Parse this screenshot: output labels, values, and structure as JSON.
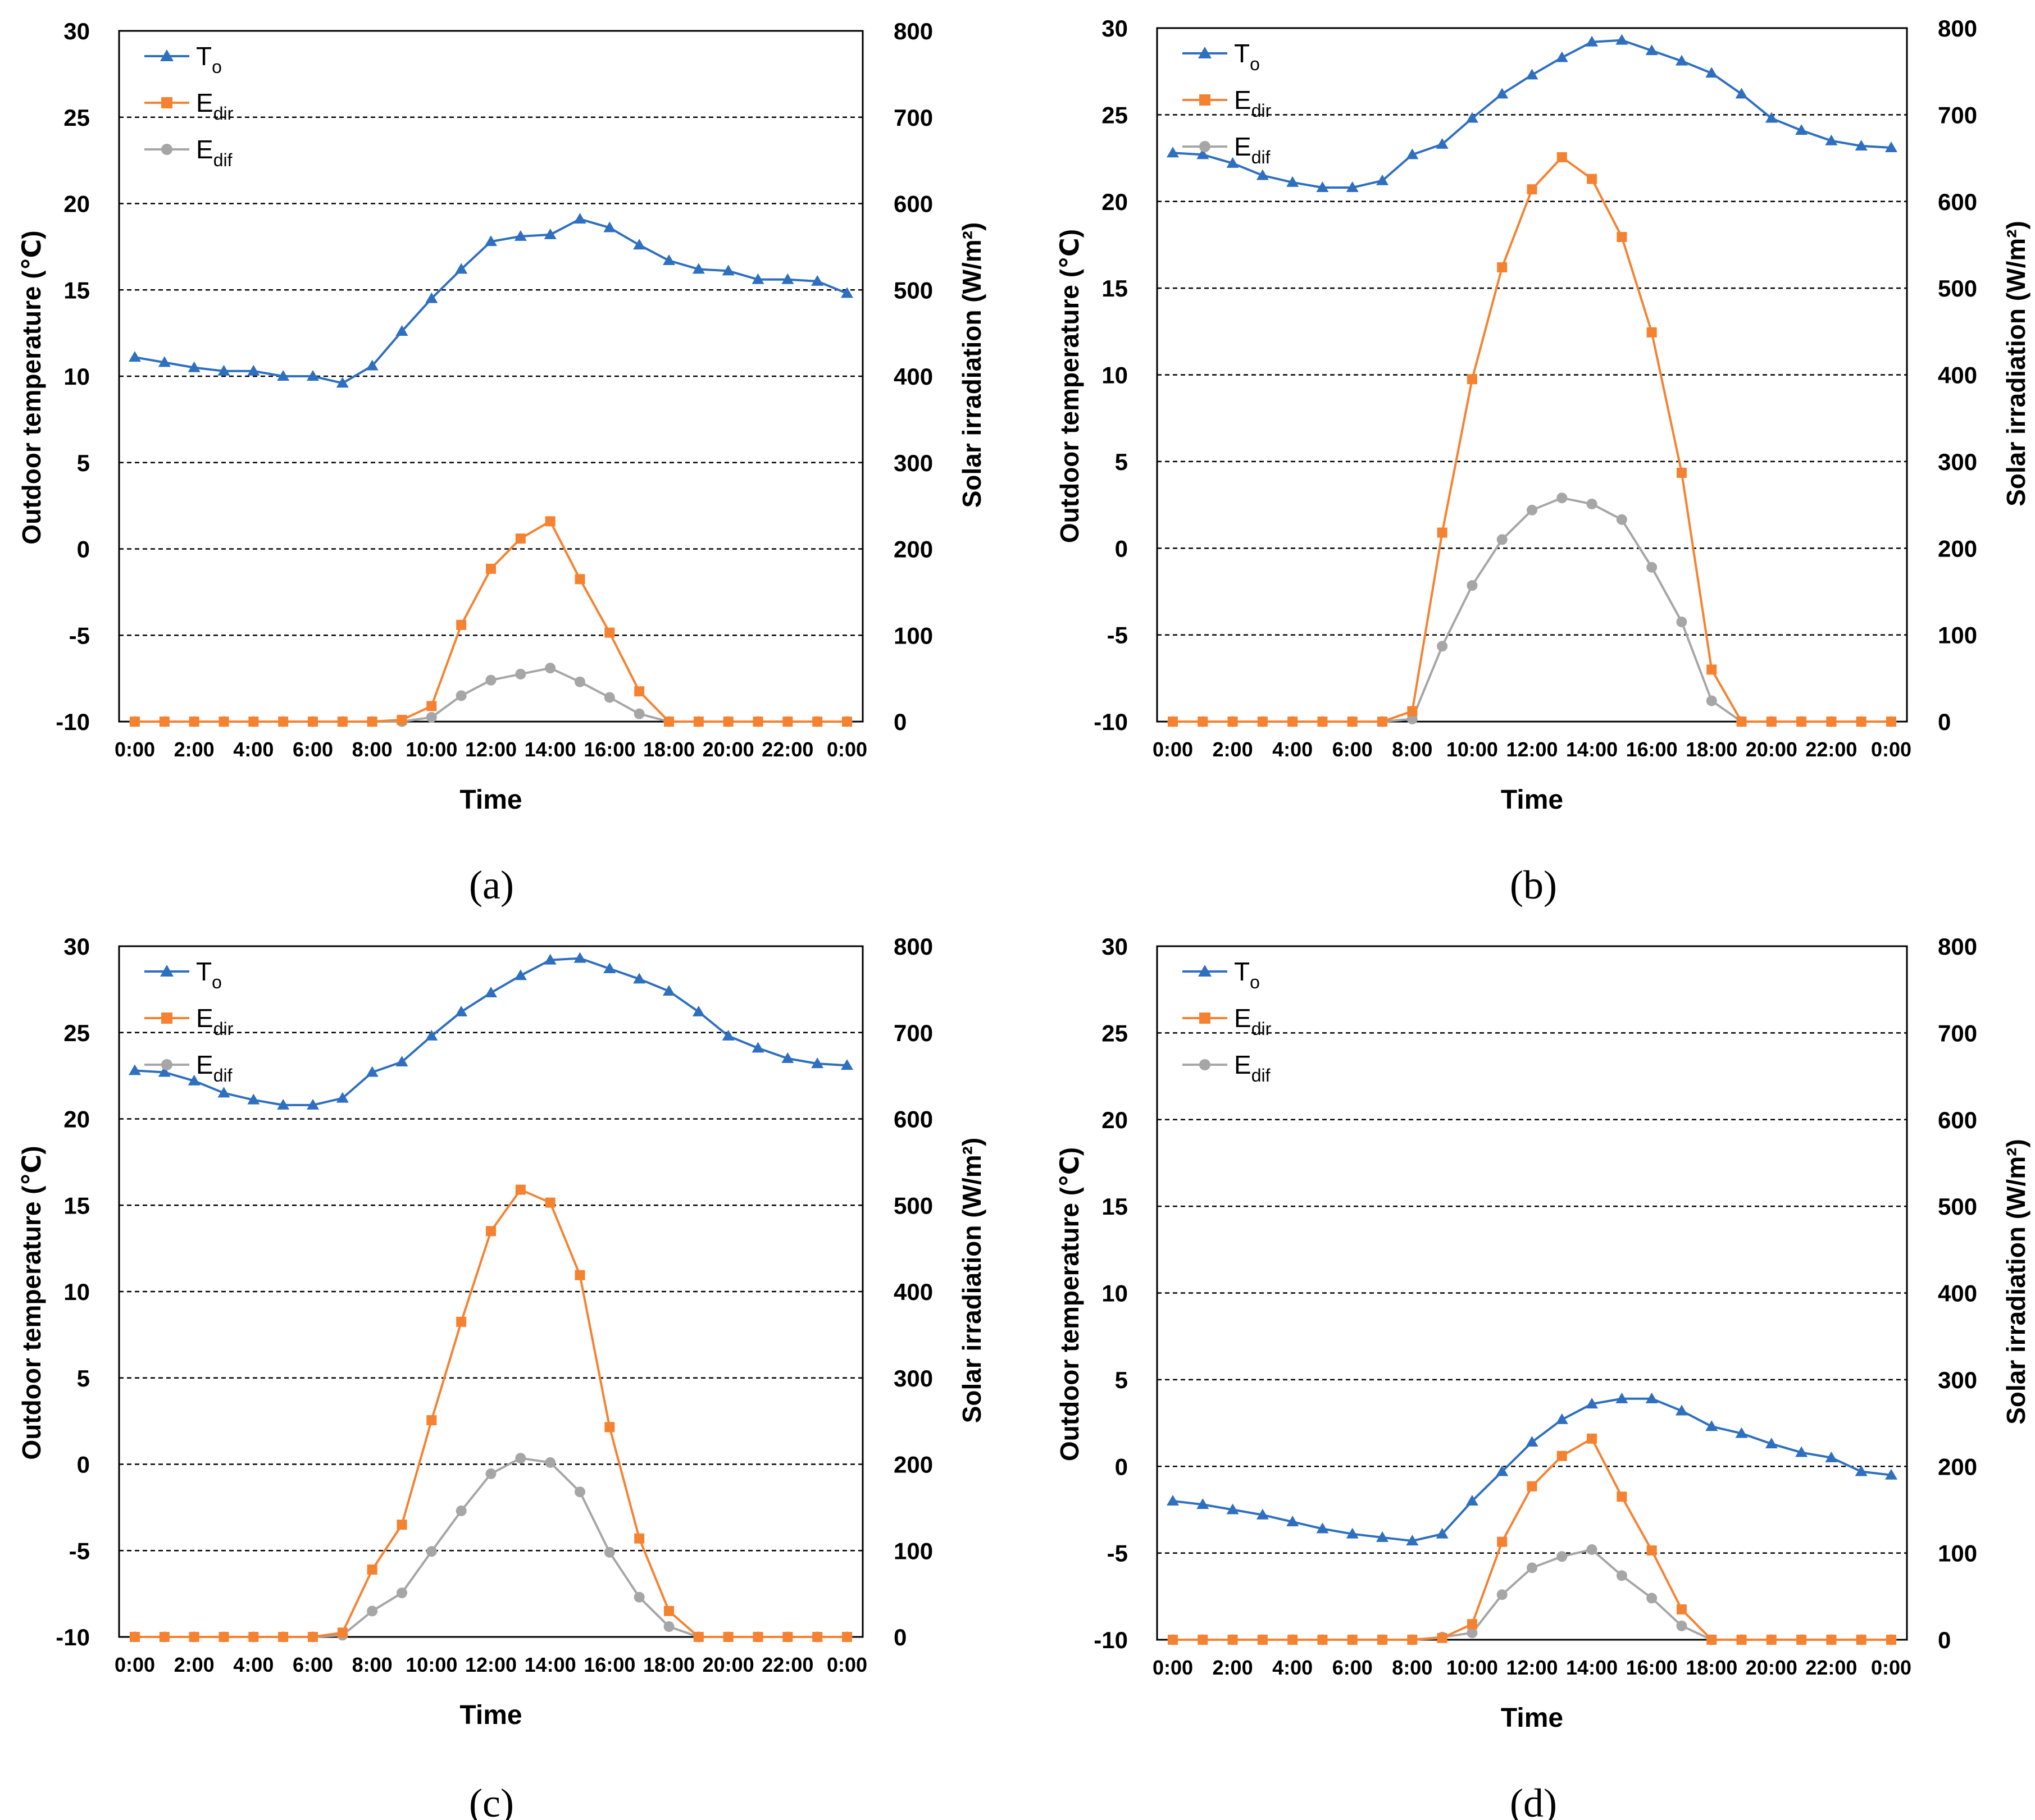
{
  "figure": {
    "panels": [
      "(a)",
      "(b)",
      "(c)",
      "(d)"
    ]
  },
  "colors": {
    "To": "#2e6fc0",
    "Edir": "#f58231",
    "Edif": "#a6a6a6",
    "grid": "#000000",
    "axis": "#000000"
  },
  "chart_data": [
    {
      "type": "line",
      "panel_label": "(a)",
      "x": [
        "0:00",
        "1:00",
        "2:00",
        "3:00",
        "4:00",
        "5:00",
        "6:00",
        "7:00",
        "8:00",
        "9:00",
        "10:00",
        "11:00",
        "12:00",
        "13:00",
        "14:00",
        "15:00",
        "16:00",
        "17:00",
        "18:00",
        "19:00",
        "20:00",
        "21:00",
        "22:00",
        "23:00",
        "0:00"
      ],
      "xtick_labels": [
        "0:00",
        "2:00",
        "4:00",
        "6:00",
        "8:00",
        "10:00",
        "12:00",
        "14:00",
        "16:00",
        "18:00",
        "20:00",
        "22:00",
        "0:00"
      ],
      "xlabel": "Time",
      "ylabel_left": "Outdoor temperature (℃)",
      "ylabel_right": "Solar irradiation (W/m²)",
      "ylim_left": [
        -10,
        30
      ],
      "yticks_left": [
        "-10",
        "-5",
        "0",
        "5",
        "10",
        "15",
        "20",
        "25",
        "30"
      ],
      "ylim_right": [
        0,
        800
      ],
      "yticks_right": [
        "0",
        "100",
        "200",
        "300",
        "400",
        "500",
        "600",
        "700",
        "800"
      ],
      "legend": {
        "placement": "top-left",
        "entries": [
          {
            "base": "T",
            "sub": "o"
          },
          {
            "base": "E",
            "sub": "dir"
          },
          {
            "base": "E",
            "sub": "dif"
          }
        ]
      },
      "series": [
        {
          "name": "To",
          "axis": "left",
          "marker": "triangle",
          "values": [
            11.1,
            10.8,
            10.5,
            10.3,
            10.3,
            10.0,
            10.0,
            9.6,
            10.6,
            12.6,
            14.5,
            16.2,
            17.8,
            18.1,
            18.2,
            19.1,
            18.6,
            17.6,
            16.7,
            16.2,
            16.1,
            15.6,
            15.6,
            15.5,
            14.8
          ]
        },
        {
          "name": "Edir",
          "axis": "right",
          "marker": "square",
          "values": [
            0,
            0,
            0,
            0,
            0,
            0,
            0,
            0,
            0,
            2,
            18,
            112,
            177,
            212,
            232,
            165,
            103,
            35,
            0,
            0,
            0,
            0,
            0,
            0,
            0
          ]
        },
        {
          "name": "Edif",
          "axis": "right",
          "marker": "circle",
          "values": [
            0,
            0,
            0,
            0,
            0,
            0,
            0,
            0,
            0,
            0,
            5,
            30,
            48,
            55,
            62,
            46,
            28,
            9,
            0,
            0,
            0,
            0,
            0,
            0,
            0
          ]
        }
      ]
    },
    {
      "type": "line",
      "panel_label": "(b)",
      "x": [
        "0:00",
        "1:00",
        "2:00",
        "3:00",
        "4:00",
        "5:00",
        "6:00",
        "7:00",
        "8:00",
        "9:00",
        "10:00",
        "11:00",
        "12:00",
        "13:00",
        "14:00",
        "15:00",
        "16:00",
        "17:00",
        "18:00",
        "19:00",
        "20:00",
        "21:00",
        "22:00",
        "23:00",
        "0:00"
      ],
      "xtick_labels": [
        "0:00",
        "2:00",
        "4:00",
        "6:00",
        "8:00",
        "10:00",
        "12:00",
        "14:00",
        "16:00",
        "18:00",
        "20:00",
        "22:00",
        "0:00"
      ],
      "xlabel": "Time",
      "ylabel_left": "Outdoor temperature (℃)",
      "ylabel_right": "Solar irradiation (W/m²)",
      "ylim_left": [
        -10,
        30
      ],
      "yticks_left": [
        "-10",
        "-5",
        "0",
        "5",
        "10",
        "15",
        "20",
        "25",
        "30"
      ],
      "ylim_right": [
        0,
        800
      ],
      "yticks_right": [
        "0",
        "100",
        "200",
        "300",
        "400",
        "500",
        "600",
        "700",
        "800"
      ],
      "legend": {
        "placement": "top-left",
        "entries": [
          {
            "base": "T",
            "sub": "o"
          },
          {
            "base": "E",
            "sub": "dir"
          },
          {
            "base": "E",
            "sub": "dif"
          }
        ]
      },
      "series": [
        {
          "name": "To",
          "axis": "left",
          "marker": "triangle",
          "values": [
            22.8,
            22.7,
            22.2,
            21.5,
            21.1,
            20.8,
            20.8,
            21.2,
            22.7,
            23.3,
            24.8,
            26.2,
            27.3,
            28.3,
            29.2,
            29.3,
            28.7,
            28.1,
            27.4,
            26.2,
            24.8,
            24.1,
            23.5,
            23.2,
            23.1
          ]
        },
        {
          "name": "Edir",
          "axis": "right",
          "marker": "square",
          "values": [
            0,
            0,
            0,
            0,
            0,
            0,
            0,
            0,
            12,
            218,
            395,
            524,
            614,
            651,
            626,
            559,
            449,
            287,
            60,
            0,
            0,
            0,
            0,
            0,
            0
          ]
        },
        {
          "name": "Edif",
          "axis": "right",
          "marker": "circle",
          "values": [
            0,
            0,
            0,
            0,
            0,
            0,
            0,
            0,
            3,
            87,
            157,
            210,
            244,
            258,
            251,
            233,
            178,
            115,
            24,
            0,
            0,
            0,
            0,
            0,
            0
          ]
        }
      ]
    },
    {
      "type": "line",
      "panel_label": "(c)",
      "x": [
        "0:00",
        "1:00",
        "2:00",
        "3:00",
        "4:00",
        "5:00",
        "6:00",
        "7:00",
        "8:00",
        "9:00",
        "10:00",
        "11:00",
        "12:00",
        "13:00",
        "14:00",
        "15:00",
        "16:00",
        "17:00",
        "18:00",
        "19:00",
        "20:00",
        "21:00",
        "22:00",
        "23:00",
        "0:00"
      ],
      "xtick_labels": [
        "0:00",
        "2:00",
        "4:00",
        "6:00",
        "8:00",
        "10:00",
        "12:00",
        "14:00",
        "16:00",
        "18:00",
        "20:00",
        "22:00",
        "0:00"
      ],
      "xlabel": "Time",
      "ylabel_left": "Outdoor temperature (℃)",
      "ylabel_right": "Solar irradiation (W/m²)",
      "ylim_left": [
        -10,
        30
      ],
      "yticks_left": [
        "-10",
        "-5",
        "0",
        "5",
        "10",
        "15",
        "20",
        "25",
        "30"
      ],
      "ylim_right": [
        0,
        800
      ],
      "yticks_right": [
        "0",
        "100",
        "200",
        "300",
        "400",
        "500",
        "600",
        "700",
        "800"
      ],
      "legend": {
        "placement": "top-left",
        "entries": [
          {
            "base": "T",
            "sub": "o"
          },
          {
            "base": "E",
            "sub": "dir"
          },
          {
            "base": "E",
            "sub": "dif"
          }
        ]
      },
      "series": [
        {
          "name": "To",
          "axis": "left",
          "marker": "triangle",
          "values": [
            22.8,
            22.7,
            22.2,
            21.5,
            21.1,
            20.8,
            20.8,
            21.2,
            22.7,
            23.3,
            24.8,
            26.2,
            27.3,
            28.3,
            29.2,
            29.3,
            28.7,
            28.1,
            27.4,
            26.2,
            24.8,
            24.1,
            23.5,
            23.2,
            23.1
          ]
        },
        {
          "name": "Edir",
          "axis": "right",
          "marker": "square",
          "values": [
            0,
            0,
            0,
            0,
            0,
            0,
            0,
            5,
            78,
            130,
            251,
            365,
            470,
            518,
            503,
            419,
            243,
            114,
            30,
            0,
            0,
            0,
            0,
            0,
            0
          ]
        },
        {
          "name": "Edif",
          "axis": "right",
          "marker": "circle",
          "values": [
            0,
            0,
            0,
            0,
            0,
            0,
            0,
            2,
            30,
            51,
            99,
            146,
            189,
            207,
            202,
            168,
            98,
            46,
            12,
            0,
            0,
            0,
            0,
            0,
            0
          ]
        }
      ]
    },
    {
      "type": "line",
      "panel_label": "(d)",
      "x": [
        "0:00",
        "1:00",
        "2:00",
        "3:00",
        "4:00",
        "5:00",
        "6:00",
        "7:00",
        "8:00",
        "9:00",
        "10:00",
        "11:00",
        "12:00",
        "13:00",
        "14:00",
        "15:00",
        "16:00",
        "17:00",
        "18:00",
        "19:00",
        "20:00",
        "21:00",
        "22:00",
        "23:00",
        "0:00"
      ],
      "xtick_labels": [
        "0:00",
        "2:00",
        "4:00",
        "6:00",
        "8:00",
        "10:00",
        "12:00",
        "14:00",
        "16:00",
        "18:00",
        "20:00",
        "22:00",
        "0:00"
      ],
      "xlabel": "Time",
      "ylabel_left": "Outdoor temperature (℃)",
      "ylabel_right": "Solar irradiation (W/m²)",
      "ylim_left": [
        -10,
        30
      ],
      "yticks_left": [
        "-10",
        "-5",
        "0",
        "5",
        "10",
        "15",
        "20",
        "25",
        "30"
      ],
      "ylim_right": [
        0,
        800
      ],
      "yticks_right": [
        "0",
        "100",
        "200",
        "300",
        "400",
        "500",
        "600",
        "700",
        "800"
      ],
      "legend": {
        "placement": "top-left",
        "entries": [
          {
            "base": "T",
            "sub": "o"
          },
          {
            "base": "E",
            "sub": "dir"
          },
          {
            "base": "E",
            "sub": "dif"
          }
        ]
      },
      "series": [
        {
          "name": "To",
          "axis": "left",
          "marker": "triangle",
          "values": [
            -2.0,
            -2.2,
            -2.5,
            -2.8,
            -3.2,
            -3.6,
            -3.9,
            -4.1,
            -4.3,
            -3.9,
            -2.0,
            -0.3,
            1.4,
            2.7,
            3.6,
            3.9,
            3.9,
            3.2,
            2.3,
            1.9,
            1.3,
            0.8,
            0.5,
            -0.3,
            -0.5
          ]
        },
        {
          "name": "Edir",
          "axis": "right",
          "marker": "square",
          "values": [
            0,
            0,
            0,
            0,
            0,
            0,
            0,
            0,
            0,
            2,
            18,
            113,
            177,
            212,
            232,
            165,
            103,
            35,
            0,
            0,
            0,
            0,
            0,
            0,
            0
          ]
        },
        {
          "name": "Edif",
          "axis": "right",
          "marker": "circle",
          "values": [
            0,
            0,
            0,
            0,
            0,
            0,
            0,
            0,
            0,
            3,
            8,
            52,
            83,
            96,
            104,
            74,
            48,
            16,
            0,
            0,
            0,
            0,
            0,
            0,
            0
          ]
        }
      ]
    }
  ]
}
